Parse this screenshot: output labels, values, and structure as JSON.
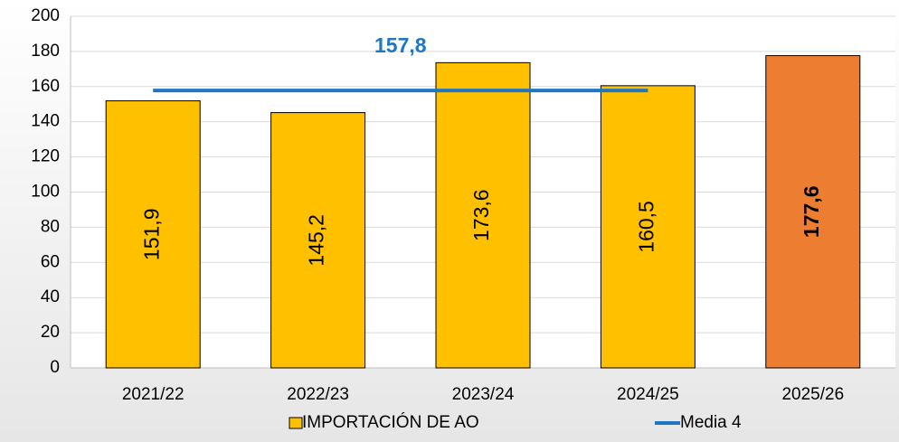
{
  "chart_data": {
    "type": "bar",
    "categories": [
      "2021/22",
      "2022/23",
      "2023/24",
      "2024/25",
      "2025/26"
    ],
    "series": [
      {
        "name": "IMPORTACIÓN DE AO",
        "type": "bar",
        "color": "#ffc000",
        "colors": [
          "#ffc000",
          "#ffc000",
          "#ffc000",
          "#ffc000",
          "#ed7d31"
        ],
        "values": [
          151.9,
          145.2,
          173.6,
          160.5,
          177.6
        ],
        "value_labels": [
          "151,9",
          "145,2",
          "173,6",
          "160,5",
          "177,6"
        ]
      },
      {
        "name": "Media 4",
        "type": "line",
        "color": "#1f77c4",
        "values": [
          157.8,
          157.8,
          157.8,
          157.8,
          null
        ],
        "value_labels": [
          "157,8",
          null,
          null,
          null,
          null
        ]
      }
    ],
    "ylim": [
      0,
      200
    ],
    "yticks": [
      0,
      20,
      40,
      60,
      80,
      100,
      120,
      140,
      160,
      180,
      200
    ],
    "grid": true
  }
}
